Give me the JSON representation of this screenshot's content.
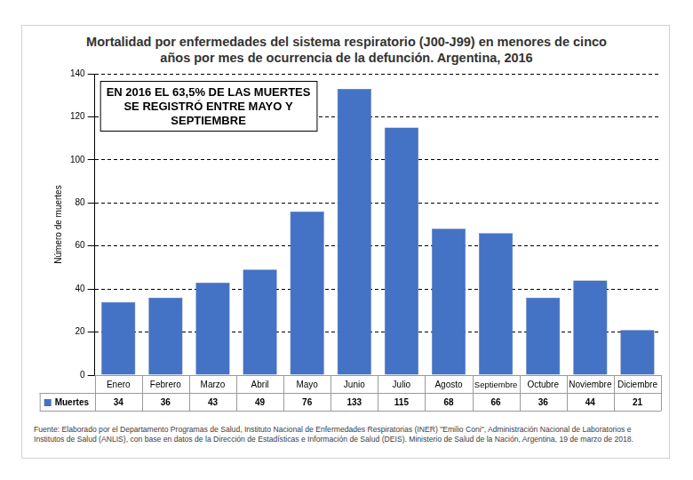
{
  "chart_data": {
    "type": "bar",
    "title": "Mortalidad por enfermedades del sistema respiratorio (J00-J99) en menores de cinco años por mes de ocurrencia de la defunción. Argentina, 2016",
    "y_label": "Número de muertes",
    "annotation": "EN 2016 EL 63,5% DE LAS MUERTES SE REGISTRÓ ENTRE MAYO Y SEPTIEMBRE",
    "source": "Fuente: Elaborado por el Departamento Programas de Salud, Instituto Nacional de Enfermedades Respiratorias (INER) \"Emilio Coni\", Administración Nacional de Laboratorios e Institutos de Salud (ANLIS), con base en datos de la Dirección de Estadísticas e Información de Salud (DEIS). Ministerio de Salud de la Nación, Argentina, 19 de marzo de 2018.",
    "categories": [
      "Enero",
      "Febrero",
      "Marzo",
      "Abril",
      "Mayo",
      "Junio",
      "Julio",
      "Agosto",
      "Septiembre",
      "Octubre",
      "Noviembre",
      "Diciembre"
    ],
    "series": [
      {
        "name": "Muertes",
        "color": "#4472c4",
        "values": [
          34,
          36,
          43,
          49,
          76,
          133,
          115,
          68,
          66,
          36,
          44,
          21
        ]
      }
    ],
    "ylim": [
      0,
      140
    ],
    "yticks": [
      0,
      20,
      40,
      60,
      80,
      100,
      120,
      140
    ],
    "grid": true
  }
}
